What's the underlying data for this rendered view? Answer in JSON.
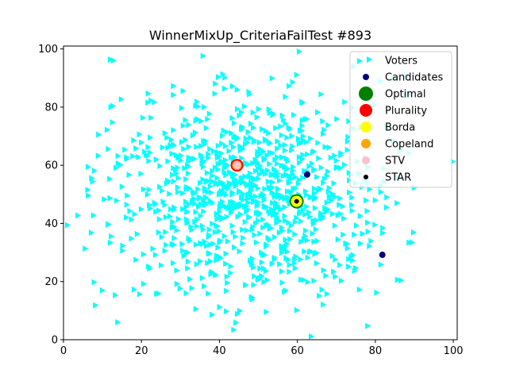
{
  "chart_data": {
    "type": "scatter",
    "title": "WinnerMixUp_CriteriaFailTest #893",
    "xlabel": "",
    "ylabel": "",
    "xlim": [
      0,
      101
    ],
    "ylim": [
      0,
      101
    ],
    "xticks": [
      "0",
      "20",
      "40",
      "60",
      "80",
      "100"
    ],
    "yticks": [
      "0",
      "20",
      "40",
      "60",
      "80",
      "100"
    ],
    "grid": false,
    "legend_position": "top-right",
    "voters": {
      "name": "Voters",
      "color": "#00ffff",
      "marker": "triangle-right",
      "count_approx": 1000,
      "center": [
        47,
        50
      ],
      "std": [
        18,
        18
      ]
    },
    "candidates": {
      "name": "Candidates",
      "color": "#000080",
      "points": [
        [
          44.5,
          60.0
        ],
        [
          59.8,
          47.6
        ],
        [
          62.5,
          56.8
        ],
        [
          81.8,
          29.2
        ]
      ]
    },
    "winners": [
      {
        "name": "Optimal",
        "color": "#008000",
        "x": 59.8,
        "y": 47.6
      },
      {
        "name": "Plurality",
        "color": "#ff0000",
        "x": 44.5,
        "y": 60.0
      },
      {
        "name": "Borda",
        "color": "#ffff00",
        "x": 59.8,
        "y": 47.6
      },
      {
        "name": "Copeland",
        "color": "#ffa500",
        "x": 44.5,
        "y": 60.0
      },
      {
        "name": "STV",
        "color": "#ffc0cb",
        "x": 44.5,
        "y": 60.0
      },
      {
        "name": "STAR",
        "color": "#000000",
        "x": 59.8,
        "y": 47.6
      }
    ],
    "legend": [
      "Voters",
      "Candidates",
      "Optimal",
      "Plurality",
      "Borda",
      "Copeland",
      "STV",
      "STAR"
    ]
  }
}
